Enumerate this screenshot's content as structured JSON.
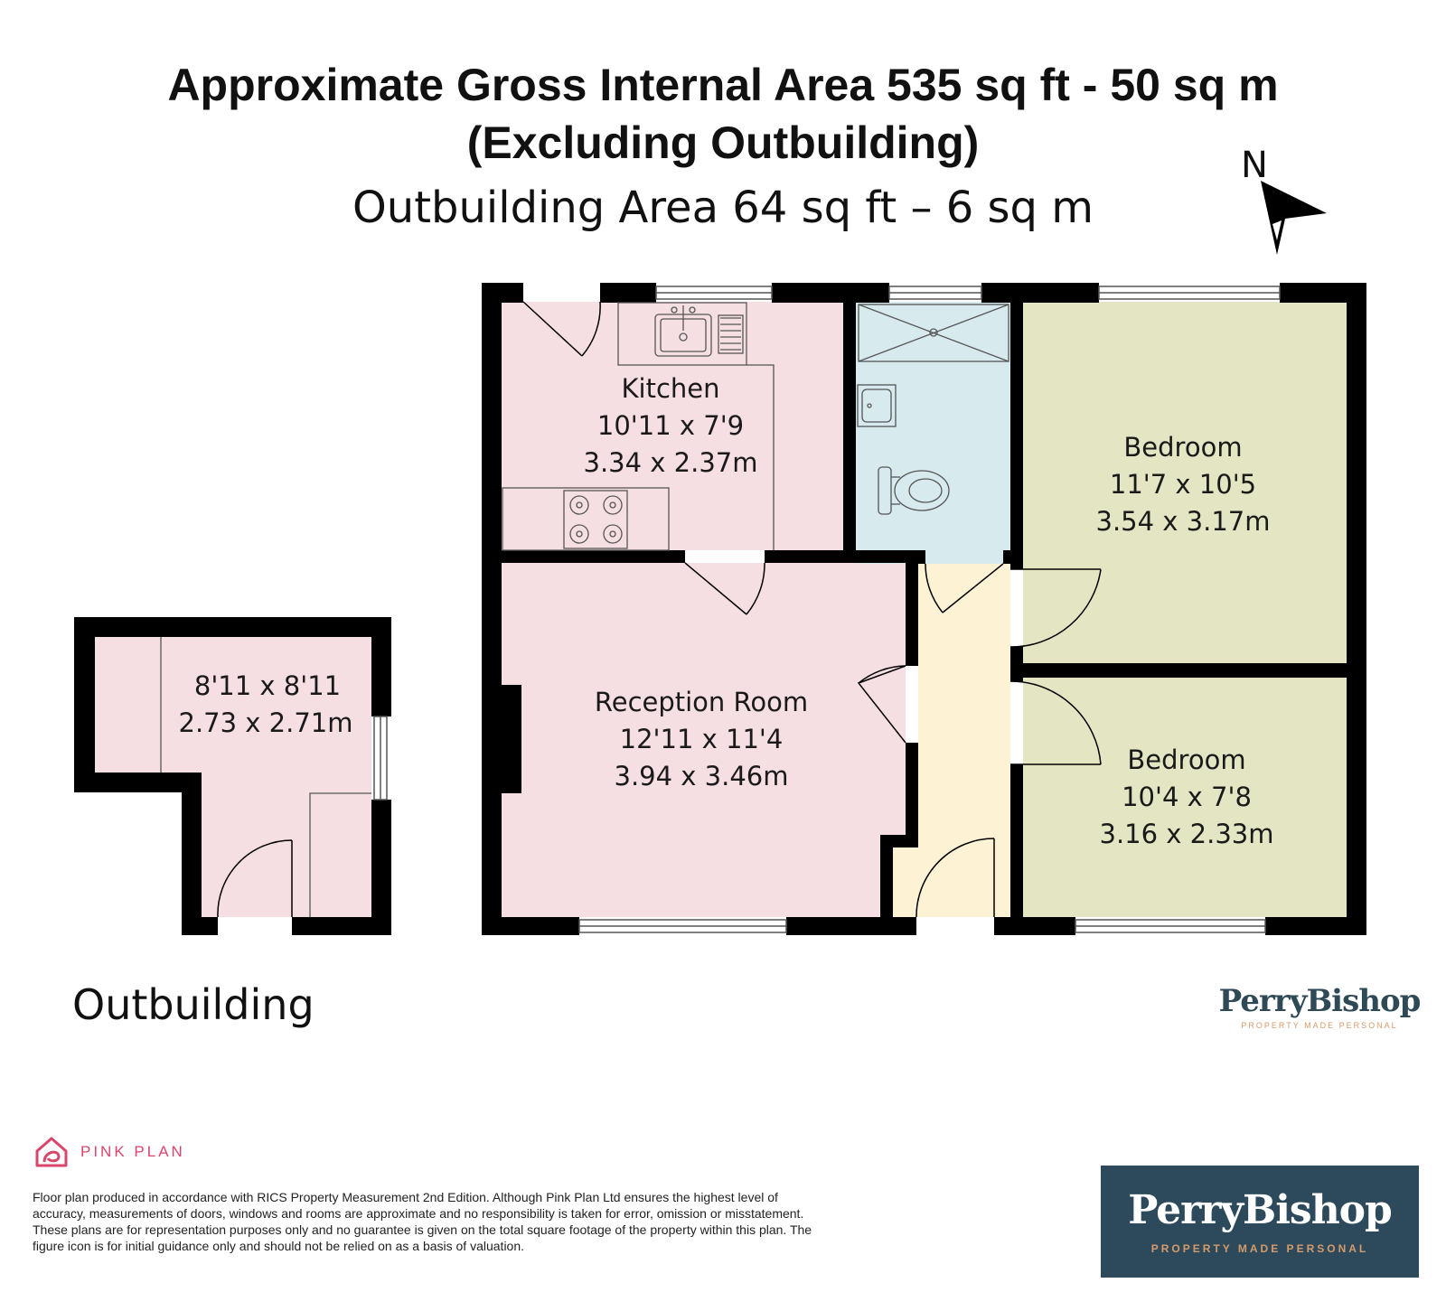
{
  "header": {
    "line1": "Approximate Gross Internal Area 535 sq ft - 50 sq m",
    "line2": "(Excluding Outbuilding)",
    "line3": "Outbuilding Area 64 sq ft – 6 sq m"
  },
  "compass": {
    "label": "N",
    "icon": "north-arrow-icon"
  },
  "rooms": {
    "kitchen": {
      "name": "Kitchen",
      "imperial": "10'11 x 7'9",
      "metric": "3.34 x 2.37m"
    },
    "reception": {
      "name": "Reception Room",
      "imperial": "12'11 x 11'4",
      "metric": "3.94 x 3.46m"
    },
    "bedroom1": {
      "name": "Bedroom",
      "imperial": "11'7 x 10'5",
      "metric": "3.54 x 3.17m"
    },
    "bedroom2": {
      "name": "Bedroom",
      "imperial": "10'4 x 7'8",
      "metric": "3.16 x 2.33m"
    },
    "outbuilding": {
      "imperial": "8'11 x 8'11",
      "metric": "2.73 x 2.71m"
    }
  },
  "outbuilding_label": "Outbuilding",
  "colors": {
    "wall": "#000000",
    "kitchen_reception": "#f6dfe3",
    "bathroom": "#d7eaed",
    "bedroom": "#e4e5c3",
    "hallway": "#fdf2d4",
    "brand_navy": "#2c4a5c",
    "brand_accent": "#d69a6a",
    "pink_plan": "#d9466b"
  },
  "branding": {
    "agent_name": "PerryBishop",
    "agent_tagline": "PROPERTY MADE PERSONAL",
    "pink_plan": "PINK PLAN"
  },
  "disclaimer": "Floor plan produced in accordance with RICS Property Measurement 2nd Edition. Although Pink Plan Ltd ensures the highest level of accuracy, measurements of doors, windows and rooms are approximate and no responsibility is taken for error, omission or misstatement. These plans are for representation purposes only and no guarantee is given on the total square footage of the property within this plan. The figure icon is for initial guidance only and should not be relied on as a basis of valuation."
}
